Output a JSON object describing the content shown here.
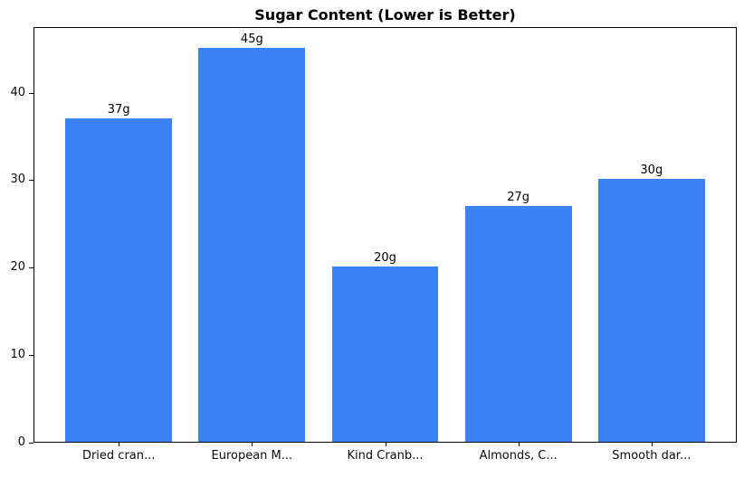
{
  "chart_data": {
    "type": "bar",
    "title": "Sugar Content (Lower is Better)",
    "categories": [
      "Dried cran...",
      "European M...",
      "Kind Cranb...",
      "Almonds, C...",
      "Smooth dar..."
    ],
    "values": [
      37,
      45,
      20,
      27,
      30
    ],
    "value_labels": [
      "37g",
      "45g",
      "20g",
      "27g",
      "30g"
    ],
    "unit": "g",
    "bar_color": "#3b82f6",
    "yticks": [
      0,
      10,
      20,
      30,
      40
    ],
    "ylim": [
      0,
      47.5
    ],
    "xlabel": "",
    "ylabel": "",
    "grid": false,
    "legend_position": "none"
  }
}
